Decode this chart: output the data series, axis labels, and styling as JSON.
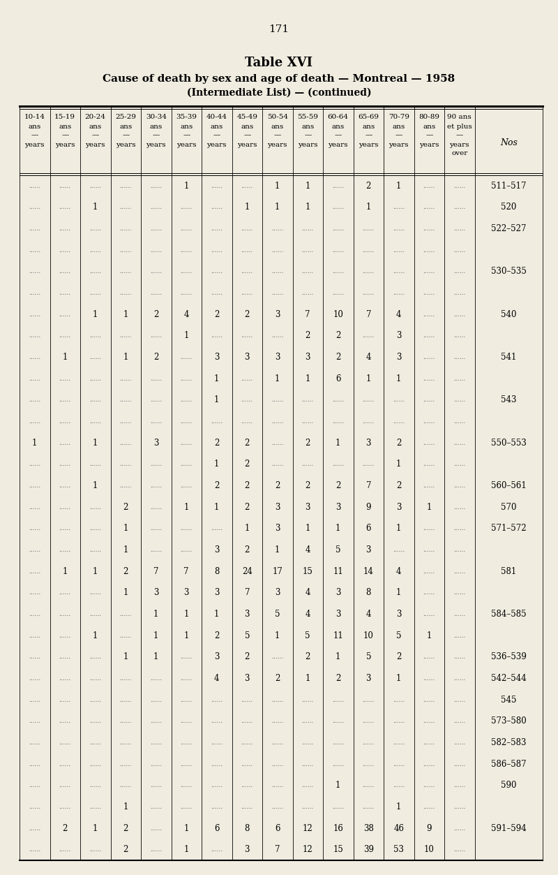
{
  "page_number": "171",
  "title": "Table XVI",
  "subtitle": "Cause of death by sex and age of death — Montreal — 1958",
  "subtitle2": "(Intermediate List) — (continued)",
  "bg_color": "#f0ece0",
  "rows": [
    {
      "nos": "511–517",
      "data": [
        "",
        "",
        "",
        "",
        "",
        "1",
        "",
        "",
        "1",
        "1",
        "",
        "2",
        "1",
        "",
        ""
      ]
    },
    {
      "nos": "520",
      "data": [
        "",
        "",
        "1",
        "",
        "",
        "",
        "",
        "1",
        "1",
        "1",
        "",
        "1",
        "",
        "",
        ""
      ]
    },
    {
      "nos": "522–527",
      "data": [
        "",
        "",
        "",
        "",
        "",
        "",
        "",
        "",
        "",
        "",
        "",
        "",
        "",
        "",
        ""
      ]
    },
    {
      "nos": "",
      "data": [
        "",
        "",
        "",
        "",
        "",
        "",
        "",
        "",
        "",
        "",
        "",
        "",
        "",
        "",
        ""
      ]
    },
    {
      "nos": "530–535",
      "data": [
        "",
        "",
        "",
        "",
        "",
        "",
        "",
        "",
        "",
        "",
        "",
        "",
        "",
        "",
        ""
      ]
    },
    {
      "nos": "",
      "data": [
        "",
        "",
        "",
        "",
        "",
        "",
        "",
        "",
        "",
        "",
        "",
        "",
        "",
        "",
        ""
      ]
    },
    {
      "nos": "540",
      "data": [
        "",
        "",
        "1",
        "1",
        "2",
        "4",
        "2",
        "2",
        "3",
        "7",
        "10",
        "7",
        "4",
        "",
        ""
      ]
    },
    {
      "nos": "",
      "data": [
        "",
        "",
        "",
        "",
        "",
        "1",
        "",
        "",
        "",
        "2",
        "2",
        "",
        "3",
        "",
        ""
      ]
    },
    {
      "nos": "541",
      "data": [
        "",
        "1",
        "",
        "1",
        "2",
        "",
        "3",
        "3",
        "3",
        "3",
        "2",
        "4",
        "3",
        "",
        ""
      ]
    },
    {
      "nos": "",
      "data": [
        "",
        "",
        "",
        "",
        "",
        "",
        "1",
        "",
        "1",
        "1",
        "6",
        "1",
        "1",
        "",
        ""
      ]
    },
    {
      "nos": "543",
      "data": [
        "",
        "",
        "",
        "",
        "",
        "",
        "1",
        "",
        "",
        "",
        "",
        "",
        "",
        "",
        ""
      ]
    },
    {
      "nos": "",
      "data": [
        "",
        "",
        "",
        "",
        "",
        "",
        "",
        "",
        "",
        "",
        "",
        "",
        "",
        "",
        ""
      ]
    },
    {
      "nos": "550–553",
      "data": [
        "1",
        "",
        "1",
        "",
        "3",
        "",
        "2",
        "2",
        "",
        "2",
        "1",
        "3",
        "2",
        "",
        ""
      ]
    },
    {
      "nos": "",
      "data": [
        "",
        "",
        "",
        "",
        "",
        "",
        "1",
        "2",
        "",
        "",
        "",
        "",
        "1",
        "",
        ""
      ]
    },
    {
      "nos": "560–561",
      "data": [
        "",
        "",
        "1",
        "",
        "",
        "",
        "2",
        "2",
        "2",
        "2",
        "2",
        "7",
        "2",
        "",
        ""
      ]
    },
    {
      "nos": "570",
      "data": [
        "",
        "",
        "",
        "2",
        "",
        "1",
        "1",
        "2",
        "3",
        "3",
        "3",
        "9",
        "3",
        "1",
        ""
      ]
    },
    {
      "nos": "571–572",
      "data": [
        "",
        "",
        "",
        "1",
        "",
        "",
        "",
        "1",
        "3",
        "1",
        "1",
        "6",
        "1",
        "",
        ""
      ]
    },
    {
      "nos": "",
      "data": [
        "",
        "",
        "",
        "1",
        "",
        "",
        "3",
        "2",
        "1",
        "4",
        "5",
        "3",
        "",
        "",
        ""
      ]
    },
    {
      "nos": "581",
      "data": [
        "",
        "1",
        "1",
        "2",
        "7",
        "7",
        "8",
        "24",
        "17",
        "15",
        "11",
        "14",
        "4",
        "",
        ""
      ]
    },
    {
      "nos": "",
      "data": [
        "",
        "",
        "",
        "1",
        "3",
        "3",
        "3",
        "7",
        "3",
        "4",
        "3",
        "8",
        "1",
        "",
        ""
      ]
    },
    {
      "nos": "584–585",
      "data": [
        "",
        "",
        "",
        "",
        "1",
        "1",
        "1",
        "3",
        "5",
        "4",
        "3",
        "4",
        "3",
        "",
        ""
      ]
    },
    {
      "nos": "",
      "data": [
        "",
        "",
        "1",
        "",
        "1",
        "1",
        "2",
        "5",
        "1",
        "5",
        "11",
        "10",
        "5",
        "1",
        ""
      ]
    },
    {
      "nos": "536–539",
      "data": [
        "",
        "",
        "",
        "1",
        "1",
        "",
        "3",
        "2",
        "",
        "2",
        "1",
        "5",
        "2",
        "",
        ""
      ]
    },
    {
      "nos": "542–544",
      "data": [
        "",
        "",
        "",
        "",
        "",
        "",
        "4",
        "3",
        "2",
        "1",
        "2",
        "3",
        "1",
        "",
        ""
      ]
    },
    {
      "nos": "545",
      "data": [
        "",
        "",
        "",
        "",
        "",
        "",
        "",
        "",
        "",
        "",
        "",
        "",
        "",
        "",
        ""
      ]
    },
    {
      "nos": "573–580",
      "data": [
        "",
        "",
        "",
        "",
        "",
        "",
        "",
        "",
        "",
        "",
        "",
        "",
        "",
        "",
        ""
      ]
    },
    {
      "nos": "582–583",
      "data": [
        "",
        "",
        "",
        "",
        "",
        "",
        "",
        "",
        "",
        "",
        "",
        "",
        "",
        "",
        ""
      ]
    },
    {
      "nos": "586–587",
      "data": [
        "",
        "",
        "",
        "",
        "",
        "",
        "",
        "",
        "",
        "",
        "",
        "",
        "",
        "",
        ""
      ]
    },
    {
      "nos": "590",
      "data": [
        "",
        "",
        "",
        "",
        "",
        "",
        "",
        "",
        "",
        "",
        "1",
        "",
        "",
        "",
        ""
      ]
    },
    {
      "nos": "",
      "data": [
        "",
        "",
        "",
        "1",
        "",
        "",
        "",
        "",
        "",
        "",
        "",
        "",
        "1",
        "",
        ""
      ]
    },
    {
      "nos": "591–594",
      "data": [
        "",
        "2",
        "1",
        "2",
        "",
        "1",
        "6",
        "8",
        "6",
        "12",
        "16",
        "38",
        "46",
        "9",
        ""
      ]
    },
    {
      "nos": "",
      "data": [
        "",
        "",
        "",
        "2",
        "",
        "1",
        "",
        "3",
        "7",
        "12",
        "15",
        "39",
        "53",
        "10",
        ""
      ]
    }
  ]
}
